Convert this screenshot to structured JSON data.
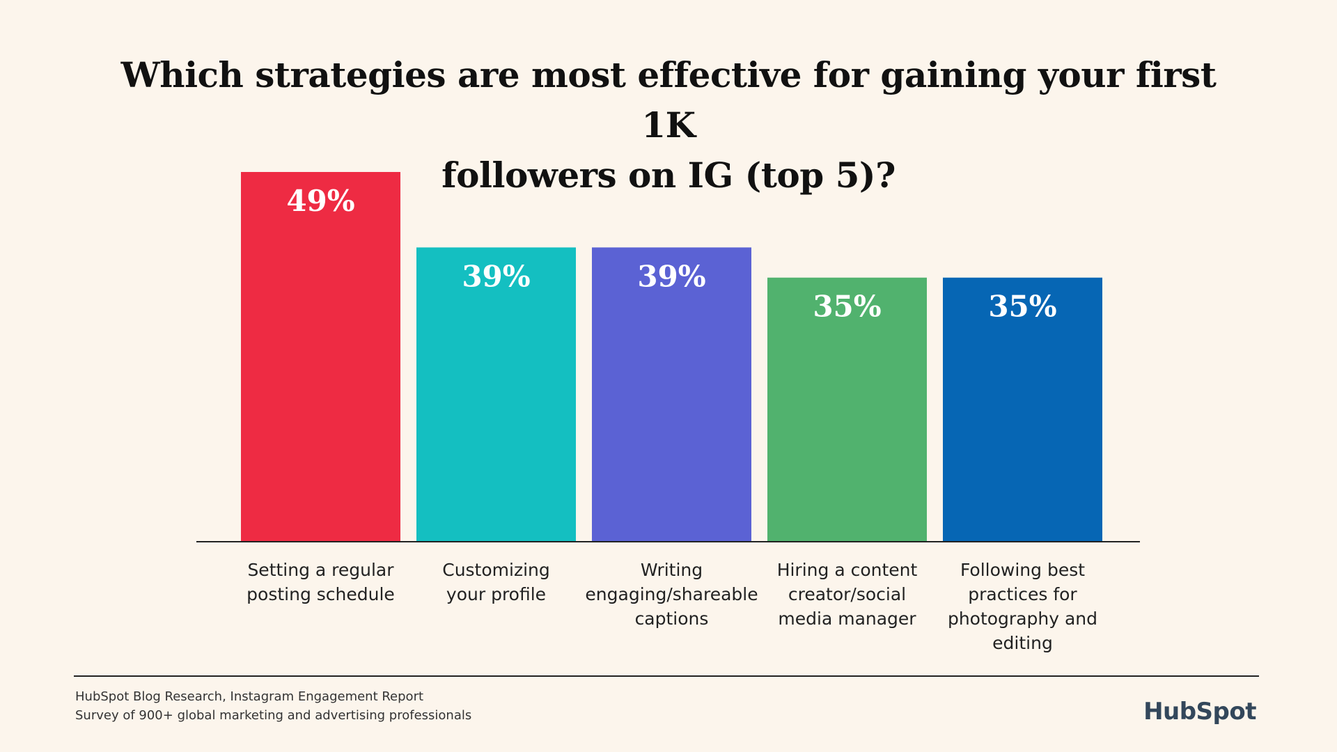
{
  "chart_data": {
    "type": "bar",
    "title": "Which strategies are most effective for gaining your first 1K followers on IG (top 5)?",
    "title_lines": [
      "Which strategies are most effective for gaining your first 1K",
      "followers on IG (top 5)?"
    ],
    "categories": [
      "Setting a regular posting schedule",
      "Customizing your profile",
      "Writing engaging/shareable captions",
      "Hiring a content creator/social media manager",
      "Following best practices for photography and editing"
    ],
    "category_label_lines": [
      [
        "Setting a regular",
        "posting schedule"
      ],
      [
        "Customizing",
        "your profile"
      ],
      [
        "Writing",
        "engaging/shareable",
        "captions"
      ],
      [
        "Hiring a content",
        "creator/social",
        "media manager"
      ],
      [
        "Following best",
        "practices for",
        "photography and",
        "editing"
      ]
    ],
    "values": [
      49,
      39,
      39,
      35,
      35
    ],
    "value_labels": [
      "49%",
      "39%",
      "39%",
      "35%",
      "35%"
    ],
    "colors": [
      "#ee2b43",
      "#14bfc1",
      "#5b62d4",
      "#51b26e",
      "#0666b4"
    ],
    "unit": "%",
    "grid": false,
    "legend": "none"
  },
  "source_lines": [
    "HubSpot Blog Research, Instagram Engagement Report",
    "Survey of 900+ global marketing and advertising professionals"
  ],
  "logo_text": "HubSpot"
}
